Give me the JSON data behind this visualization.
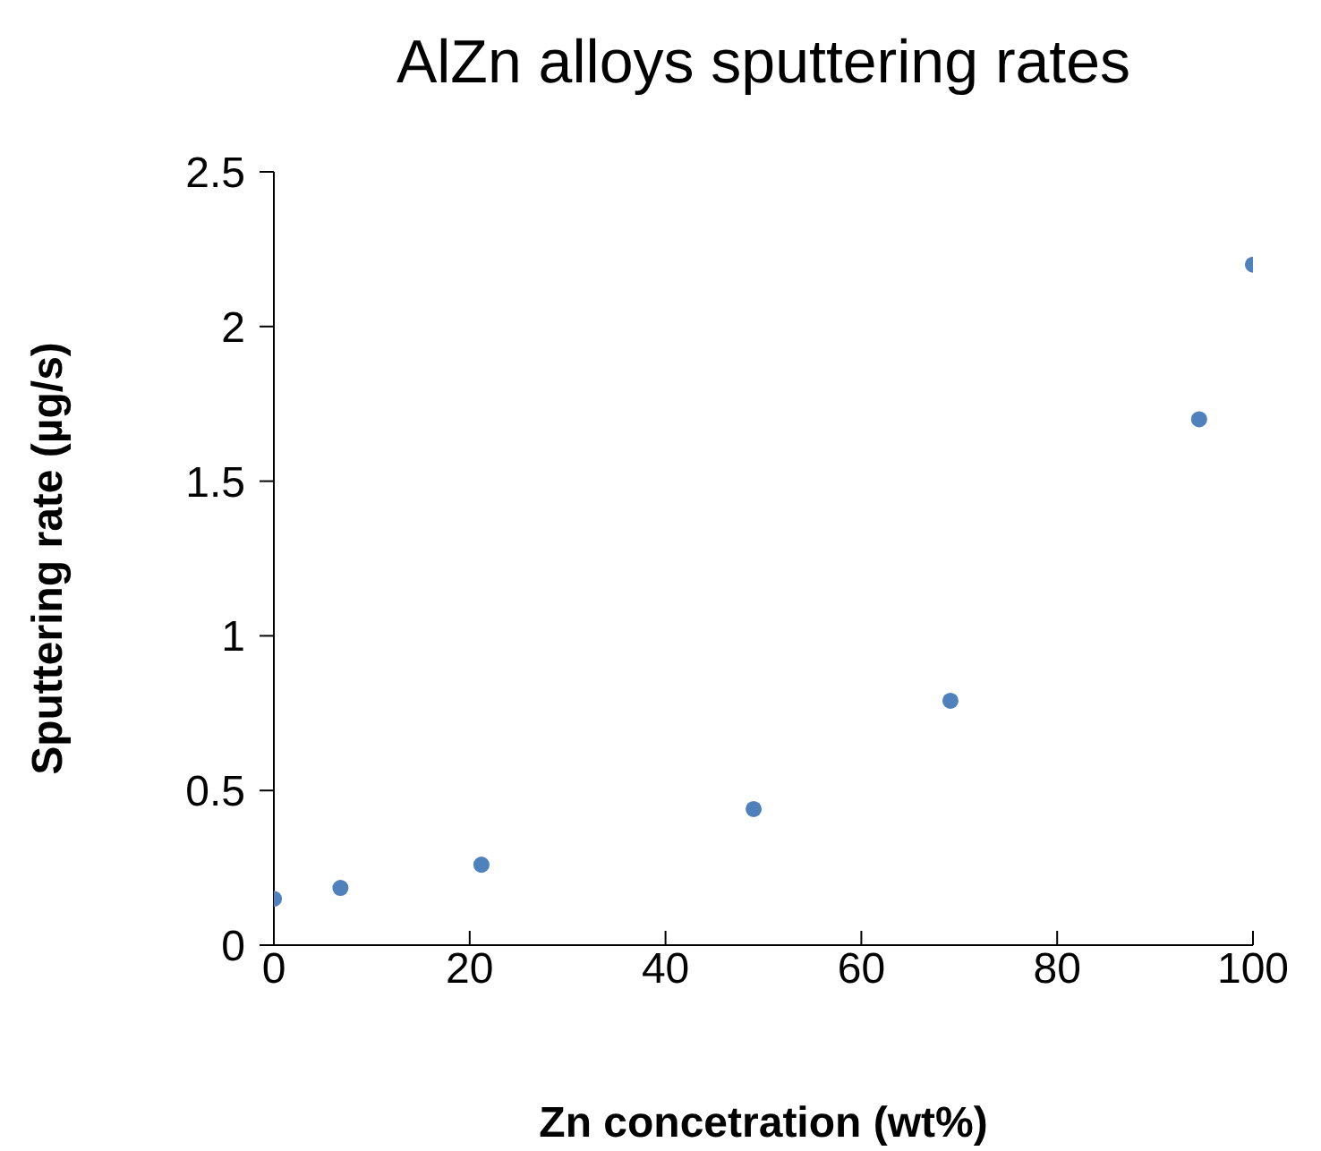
{
  "chart_data": {
    "type": "scatter",
    "title": "AlZn alloys sputtering rates",
    "xlabel": "Zn concetration (wt%)",
    "ylabel": "Sputtering rate (µg/s)",
    "x": [
      0,
      6.8,
      21.2,
      49,
      69.1,
      94.5,
      100
    ],
    "series": [
      {
        "color": "#4f81bd",
        "values": [
          0.15,
          0.185,
          0.26,
          0.44,
          0.79,
          1.7,
          2.2
        ]
      }
    ],
    "xlim": [
      0,
      100
    ],
    "xticks": [
      0,
      20,
      40,
      60,
      80,
      100
    ],
    "ylim": [
      0,
      2.5
    ],
    "yticks": [
      0,
      0.5,
      1,
      1.5,
      2,
      2.5
    ],
    "grid": false,
    "legend": false,
    "marker": "circle"
  }
}
